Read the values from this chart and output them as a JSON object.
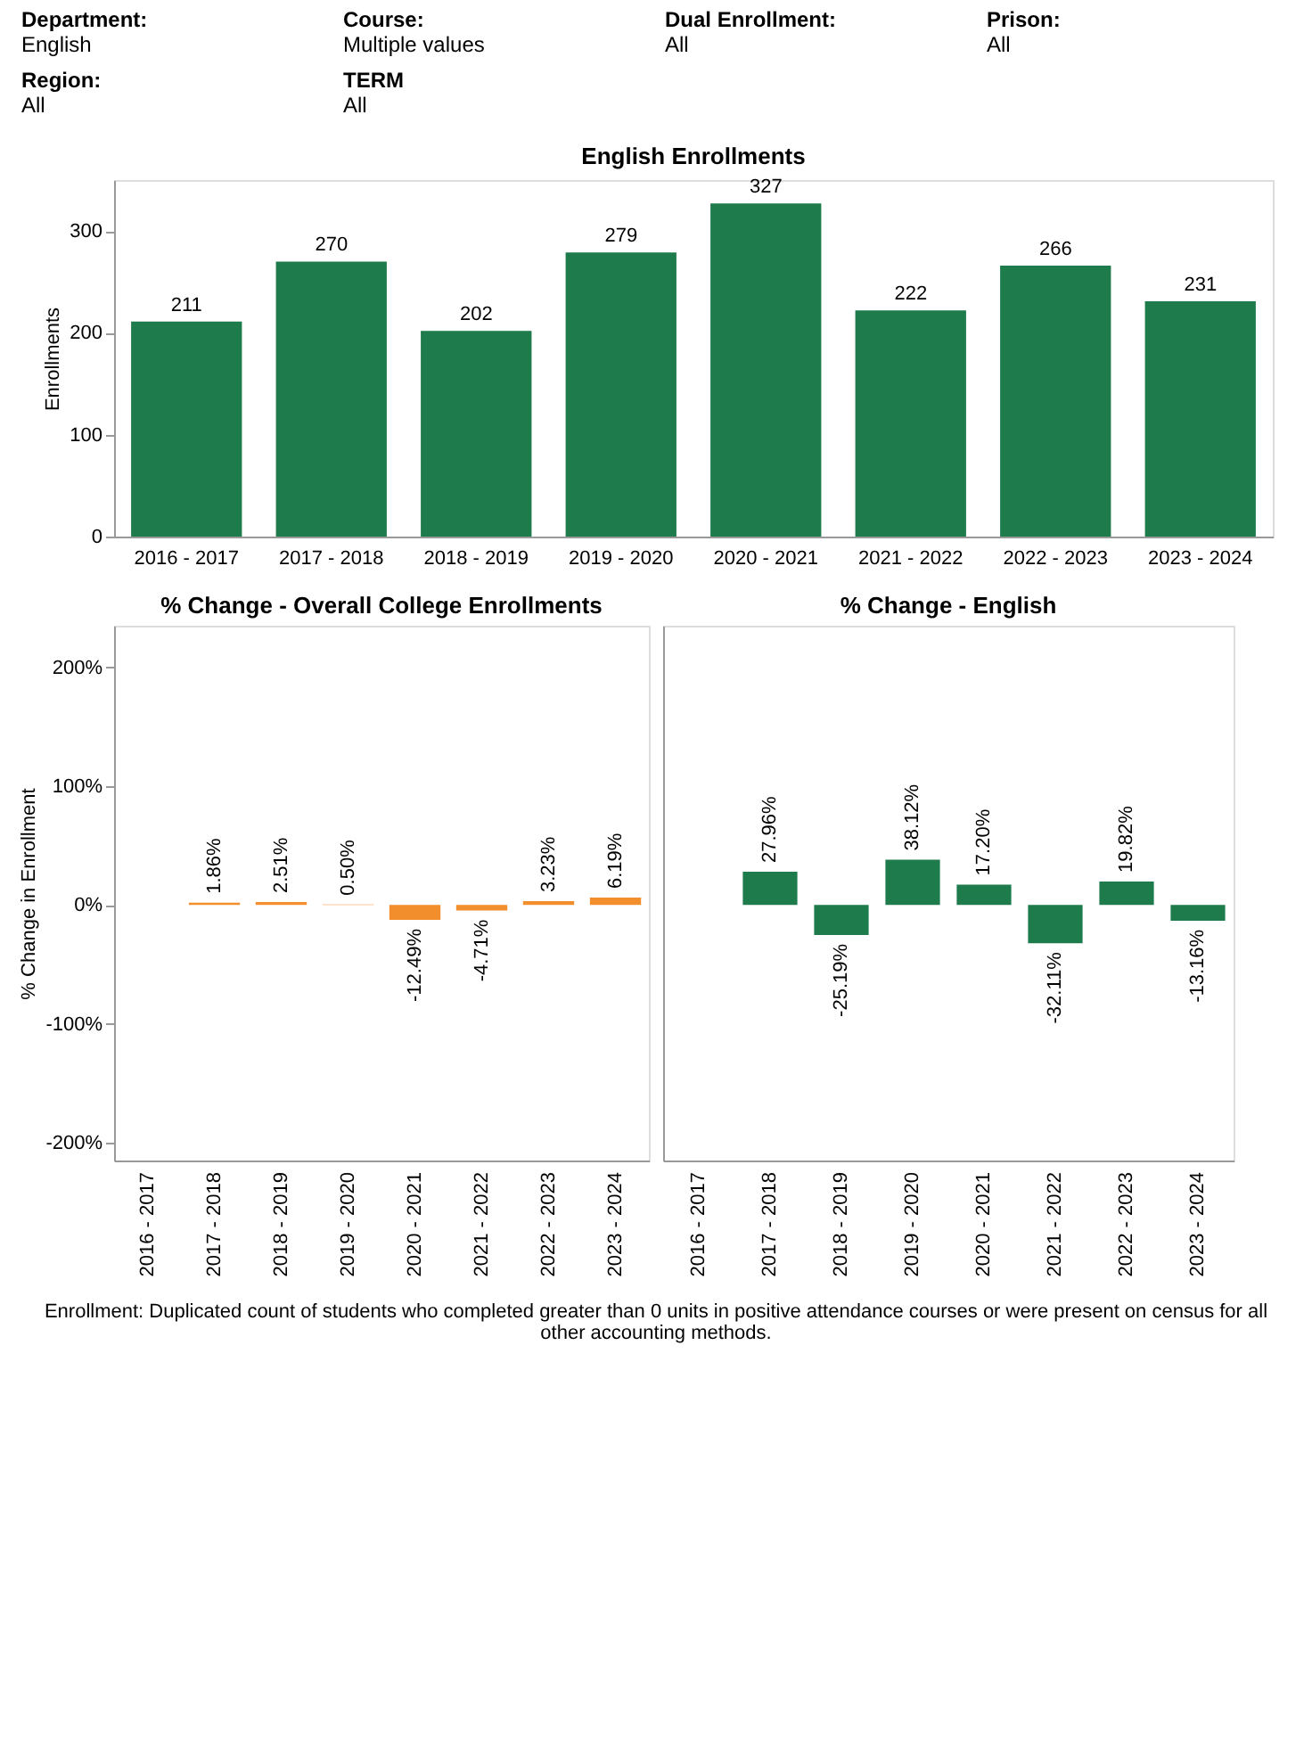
{
  "chart_data": [
    {
      "type": "bar",
      "title": "English Enrollments",
      "ylabel": "Enrollments",
      "annotations": [
        "Department:",
        "English",
        "Course:",
        "Multiple values",
        "Dual Enrollment:",
        "All",
        "Prison:",
        "All",
        "Region:",
        "All",
        "TERM",
        "All"
      ],
      "categories": [
        "2016 - 2017",
        "2017 - 2018",
        "2018 - 2019",
        "2019 - 2020",
        "2020 - 2021",
        "2021 - 2022",
        "2022 - 2023",
        "2023 - 2024"
      ],
      "values": [
        211,
        270,
        202,
        279,
        327,
        222,
        266,
        231
      ],
      "color": "#1e7b4b",
      "data_labels": true,
      "ylim": [
        0,
        350
      ],
      "yticks": [
        0,
        100,
        200,
        300
      ]
    },
    {
      "type": "bar",
      "title": "% Change - Overall College Enrollments",
      "ylabel": "% Change in Enrollment",
      "categories": [
        "2016 - 2017",
        "2017 - 2018",
        "2018 - 2019",
        "2019 - 2020",
        "2020 - 2021",
        "2021 - 2022",
        "2022 - 2023",
        "2023 - 2024"
      ],
      "values": [
        null,
        1.86,
        2.51,
        0.5,
        -12.49,
        -4.71,
        3.23,
        6.19
      ],
      "color": "#f28e2b",
      "value_labels": [
        null,
        "1.86%",
        "2.51%",
        "0.50%",
        "-12.49%",
        "-4.71%",
        "3.23%",
        "6.19%"
      ],
      "ylim": [
        -215,
        235
      ],
      "yticks": [
        {
          "value": -200,
          "label": "-200%"
        },
        {
          "value": -100,
          "label": "-100%"
        },
        {
          "value": 0,
          "label": "0%"
        },
        {
          "value": 100,
          "label": "100%"
        },
        {
          "value": 200,
          "label": "200%"
        }
      ]
    },
    {
      "type": "bar",
      "title": "% Change - English",
      "annotations": [
        "Enrollment: Duplicated count of students who completed greater than 0 units in positive attendance courses or were present on census for all other accounting methods."
      ],
      "categories": [
        "2016 - 2017",
        "2017 - 2018",
        "2018 - 2019",
        "2019 - 2020",
        "2020 - 2021",
        "2021 - 2022",
        "2022 - 2023",
        "2023 - 2024"
      ],
      "values": [
        null,
        27.96,
        -25.19,
        38.12,
        17.2,
        -32.11,
        19.82,
        -13.16
      ],
      "color": "#1e7b4b",
      "value_labels": [
        null,
        "27.96%",
        "-25.19%",
        "38.12%",
        "17.20%",
        "-32.11%",
        "19.82%",
        "-13.16%"
      ],
      "ylim": [
        -215,
        235
      ],
      "tick_labels": "x"
    }
  ]
}
